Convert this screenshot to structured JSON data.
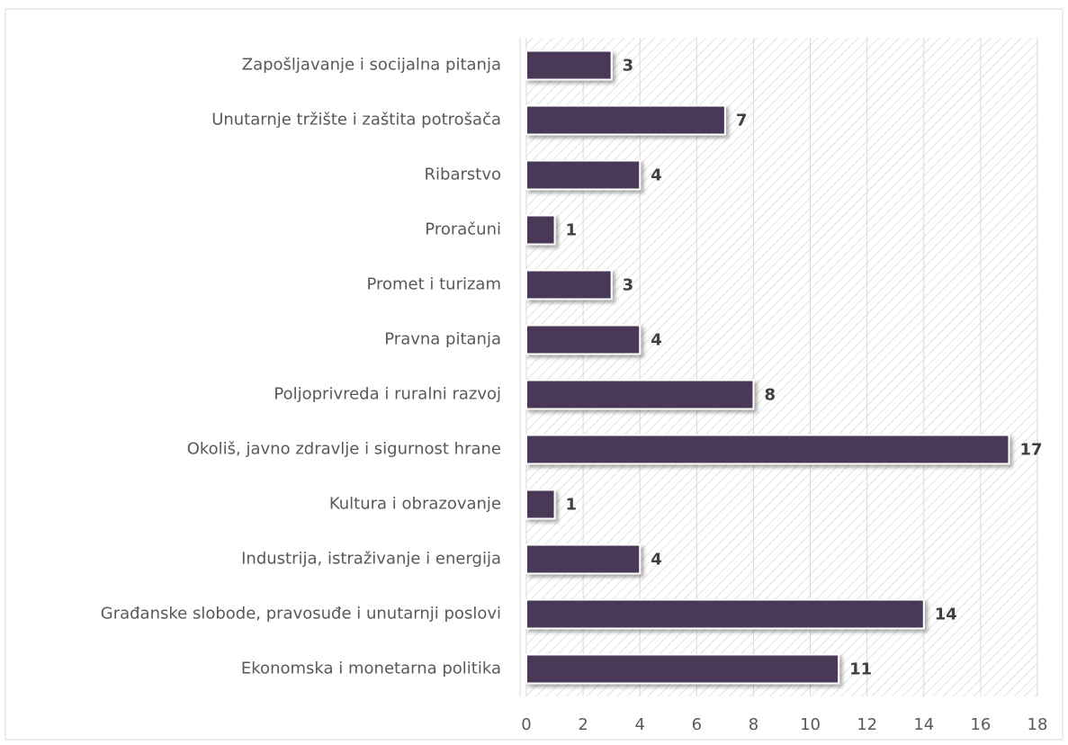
{
  "chart_data": {
    "type": "bar",
    "orientation": "horizontal",
    "categories": [
      "Zapošljavanje i socijalna pitanja",
      "Unutarnje tržište i zaštita potrošača",
      "Ribarstvo",
      "Proračuni",
      "Promet i turizam",
      "Pravna pitanja",
      "Poljoprivreda i ruralni razvoj",
      "Okoliš, javno zdravlje i sigurnost hrane",
      "Kultura i obrazovanje",
      "Industrija, istraživanje i energija",
      "Građanske slobode, pravosuđe i unutarnji poslovi",
      "Ekonomska i monetarna politika"
    ],
    "values": [
      3,
      7,
      4,
      1,
      3,
      4,
      8,
      17,
      1,
      4,
      14,
      11
    ],
    "color": "#4a3857",
    "xlim": [
      0,
      18
    ],
    "xticks": [
      0,
      2,
      4,
      6,
      8,
      10,
      12,
      14,
      16,
      18
    ],
    "grid": true
  }
}
